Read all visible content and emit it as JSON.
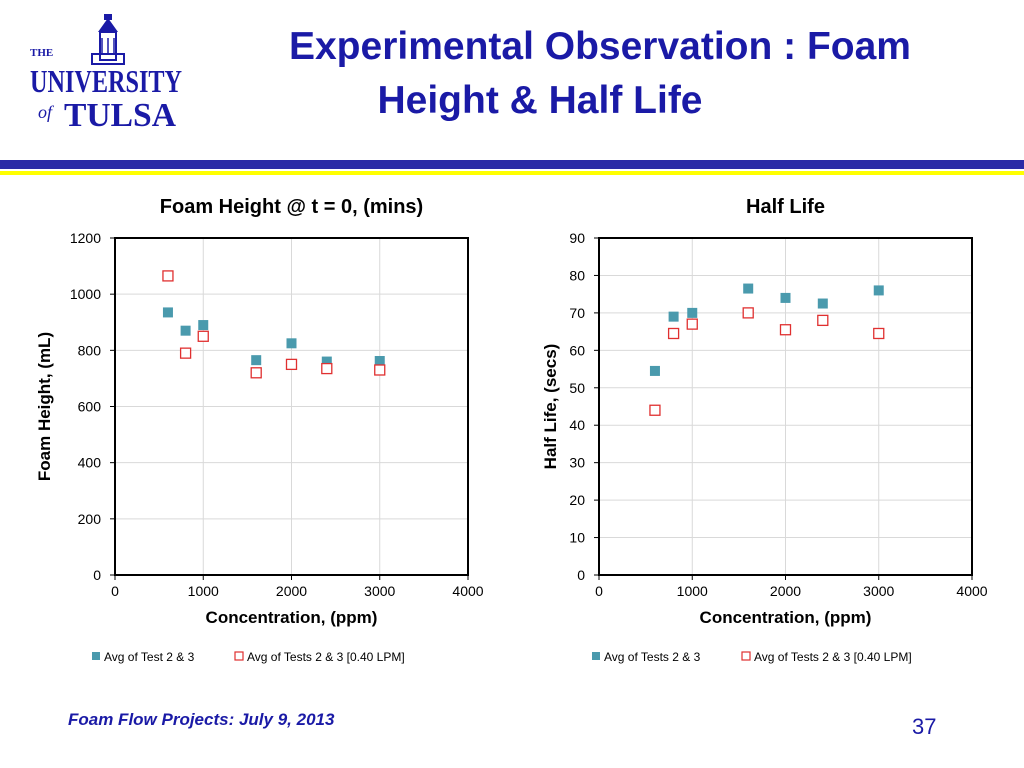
{
  "slide": {
    "title_line1": "Experimental Observation : Foam",
    "title_line2": "Height & Half Life",
    "footer": "Foam Flow Projects: July 9, 2013",
    "page_number": "37",
    "logo": {
      "the": "THE",
      "university": "UNIVERSITY",
      "of": "of",
      "tulsa": "TULSA"
    }
  },
  "colors": {
    "title": "#1a1aa6",
    "band_blue": "#2b2ba6",
    "band_yellow": "#ffff00",
    "series_filled": "#4a9aad",
    "series_open": "#e03030"
  },
  "chart_data": [
    {
      "type": "scatter",
      "title": "Foam Height @ t = 0, (mins)",
      "xlabel": "Concentration, (ppm)",
      "ylabel": "Foam Height, (mL)",
      "xlim": [
        0,
        4000
      ],
      "ylim": [
        0,
        1200
      ],
      "xticks": [
        0,
        1000,
        2000,
        3000,
        4000
      ],
      "yticks": [
        0,
        200,
        400,
        600,
        800,
        1000,
        1200
      ],
      "grid": true,
      "legend_position": "bottom",
      "series": [
        {
          "name": "Avg of Test 2 & 3",
          "marker": "filled-square",
          "x": [
            600,
            800,
            1000,
            1600,
            2000,
            2400,
            3000
          ],
          "y": [
            935,
            870,
            890,
            765,
            825,
            760,
            762
          ]
        },
        {
          "name": "Avg of Tests 2 & 3 [0.40 LPM]",
          "marker": "open-square",
          "x": [
            600,
            800,
            1000,
            1600,
            2000,
            2400,
            3000
          ],
          "y": [
            1065,
            790,
            850,
            720,
            750,
            735,
            730
          ]
        }
      ]
    },
    {
      "type": "scatter",
      "title": "Half Life",
      "xlabel": "Concentration, (ppm)",
      "ylabel": "Half Life, (secs)",
      "xlim": [
        0,
        4000
      ],
      "ylim": [
        0,
        90
      ],
      "xticks": [
        0,
        1000,
        2000,
        3000,
        4000
      ],
      "yticks": [
        0,
        10,
        20,
        30,
        40,
        50,
        60,
        70,
        80,
        90
      ],
      "grid": true,
      "legend_position": "bottom",
      "series": [
        {
          "name": "Avg of Tests 2 & 3",
          "marker": "filled-square",
          "x": [
            600,
            800,
            1000,
            1600,
            2000,
            2400,
            3000
          ],
          "y": [
            54.5,
            69,
            70,
            76.5,
            74,
            72.5,
            76
          ]
        },
        {
          "name": "Avg of Tests 2 & 3 [0.40 LPM]",
          "marker": "open-square",
          "x": [
            600,
            800,
            1000,
            1600,
            2000,
            2400,
            3000
          ],
          "y": [
            44,
            64.5,
            67,
            70,
            65.5,
            68,
            64.5
          ]
        }
      ]
    }
  ]
}
